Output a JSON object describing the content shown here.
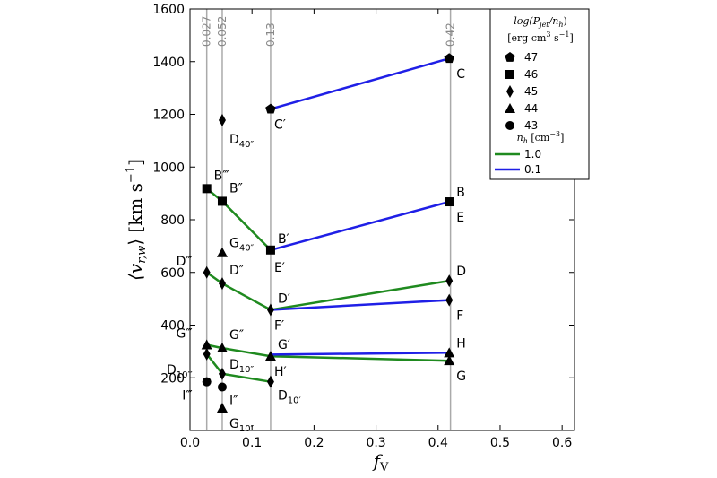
{
  "chart_data": {
    "type": "scatter",
    "xlabel": "f",
    "xlabel_sub": "V",
    "ylabel": "⟨v",
    "ylabel_sub": "r,w",
    "ylabel_unit": "⟩  [km s",
    "ylabel_sup": "−1",
    "ylabel_close": "]",
    "xlim": [
      0.0,
      0.62
    ],
    "ylim": [
      0,
      1600
    ],
    "x_ticks": [
      {
        "v": 0.0,
        "label": "0.0"
      },
      {
        "v": 0.1,
        "label": "0.1"
      },
      {
        "v": 0.2,
        "label": "0.2"
      },
      {
        "v": 0.3,
        "label": "0.3"
      },
      {
        "v": 0.4,
        "label": "0.4"
      },
      {
        "v": 0.5,
        "label": "0.5"
      },
      {
        "v": 0.6,
        "label": "0.6"
      }
    ],
    "y_ticks": [
      {
        "v": 200,
        "label": "200"
      },
      {
        "v": 400,
        "label": "400"
      },
      {
        "v": 600,
        "label": "600"
      },
      {
        "v": 800,
        "label": "800"
      },
      {
        "v": 1000,
        "label": "1000"
      },
      {
        "v": 1200,
        "label": "1200"
      },
      {
        "v": 1400,
        "label": "1400"
      },
      {
        "v": 1600,
        "label": "1600"
      }
    ],
    "vlines": [
      {
        "x": 0.027,
        "label": "0.027"
      },
      {
        "x": 0.052,
        "label": "0.052"
      },
      {
        "x": 0.13,
        "label": "0.13"
      },
      {
        "x": 0.42,
        "label": "0.42"
      }
    ],
    "lines": [
      {
        "color": "#1f1fe6",
        "points": [
          [
            0.13,
            1220
          ],
          [
            0.418,
            1412
          ]
        ]
      },
      {
        "color": "#1f8a1f",
        "points": [
          [
            0.027,
            918
          ],
          [
            0.052,
            870
          ],
          [
            0.13,
            685
          ]
        ]
      },
      {
        "color": "#1f1fe6",
        "points": [
          [
            0.13,
            685
          ],
          [
            0.418,
            868
          ]
        ]
      },
      {
        "color": "#1f8a1f",
        "points": [
          [
            0.027,
            600
          ],
          [
            0.052,
            558
          ],
          [
            0.13,
            458
          ],
          [
            0.418,
            568
          ]
        ]
      },
      {
        "color": "#1f1fe6",
        "points": [
          [
            0.13,
            458
          ],
          [
            0.418,
            495
          ]
        ]
      },
      {
        "color": "#1f8a1f",
        "points": [
          [
            0.027,
            325
          ],
          [
            0.052,
            313
          ],
          [
            0.13,
            282
          ],
          [
            0.418,
            265
          ]
        ]
      },
      {
        "color": "#1f1fe6",
        "points": [
          [
            0.13,
            288
          ],
          [
            0.418,
            295
          ]
        ]
      },
      {
        "color": "#1f8a1f",
        "points": [
          [
            0.027,
            290
          ],
          [
            0.052,
            215
          ],
          [
            0.13,
            185
          ]
        ]
      }
    ],
    "points": [
      {
        "x": 0.13,
        "y": 1220,
        "marker": "pentagon",
        "label": "C′",
        "dx": 4,
        "dy": 22
      },
      {
        "x": 0.418,
        "y": 1412,
        "marker": "pentagon",
        "label": "C",
        "dx": 8,
        "dy": 22
      },
      {
        "x": 0.052,
        "y": 1178,
        "marker": "diamond",
        "label": "D",
        "sub": "40″",
        "dx": 8,
        "dy": 26
      },
      {
        "x": 0.027,
        "y": 918,
        "marker": "square",
        "label": "B‴",
        "dx": 8,
        "dy": -10
      },
      {
        "x": 0.052,
        "y": 870,
        "marker": "square",
        "label": "B″",
        "dx": 8,
        "dy": -10
      },
      {
        "x": 0.13,
        "y": 685,
        "marker": "square",
        "label": "B′",
        "dx": 8,
        "dy": -8
      },
      {
        "x": 0.13,
        "y": 685,
        "marker": "none",
        "label": "E′",
        "dx": 4,
        "dy": 24
      },
      {
        "x": 0.418,
        "y": 868,
        "marker": "square",
        "label": "B",
        "dx": 8,
        "dy": -6
      },
      {
        "x": 0.418,
        "y": 868,
        "marker": "none",
        "label": "E",
        "dx": 8,
        "dy": 22
      },
      {
        "x": 0.052,
        "y": 675,
        "marker": "triangle",
        "label": "G",
        "sub": "40″",
        "dx": 8,
        "dy": -6
      },
      {
        "x": 0.027,
        "y": 600,
        "marker": "diamond",
        "label": "D‴",
        "dx": -14,
        "dy": -8
      },
      {
        "x": 0.052,
        "y": 558,
        "marker": "diamond",
        "label": "D″",
        "dx": 8,
        "dy": -10
      },
      {
        "x": 0.13,
        "y": 458,
        "marker": "diamond",
        "label": "D′",
        "dx": 8,
        "dy": -8
      },
      {
        "x": 0.13,
        "y": 458,
        "marker": "none",
        "label": "F′",
        "dx": 4,
        "dy": 22
      },
      {
        "x": 0.418,
        "y": 568,
        "marker": "diamond",
        "label": "D",
        "dx": 8,
        "dy": -6
      },
      {
        "x": 0.418,
        "y": 495,
        "marker": "diamond",
        "label": "F",
        "dx": 8,
        "dy": 22
      },
      {
        "x": 0.027,
        "y": 325,
        "marker": "triangle",
        "label": "G‴",
        "dx": -14,
        "dy": -8
      },
      {
        "x": 0.052,
        "y": 313,
        "marker": "triangle",
        "label": "G″",
        "dx": 8,
        "dy": -10
      },
      {
        "x": 0.13,
        "y": 282,
        "marker": "triangle",
        "label": "G′",
        "dx": 8,
        "dy": -8
      },
      {
        "x": 0.13,
        "y": 282,
        "marker": "none",
        "label": "H′",
        "dx": 4,
        "dy": 22
      },
      {
        "x": 0.418,
        "y": 295,
        "marker": "triangle",
        "label": "H",
        "dx": 8,
        "dy": -6
      },
      {
        "x": 0.418,
        "y": 265,
        "marker": "triangle",
        "label": "G",
        "dx": 8,
        "dy": 22
      },
      {
        "x": 0.027,
        "y": 290,
        "marker": "diamond",
        "label": "D",
        "sub": "10‴",
        "dx": -14,
        "dy": 22
      },
      {
        "x": 0.052,
        "y": 215,
        "marker": "diamond",
        "label": "D",
        "sub": "10″",
        "dx": 8,
        "dy": -6
      },
      {
        "x": 0.13,
        "y": 185,
        "marker": "diamond",
        "label": "D",
        "sub": "10′",
        "dx": 8,
        "dy": 20
      },
      {
        "x": 0.027,
        "y": 185,
        "marker": "circle",
        "label": "I‴",
        "dx": -14,
        "dy": 20
      },
      {
        "x": 0.052,
        "y": 165,
        "marker": "circle",
        "label": "I″",
        "dx": 8,
        "dy": 20
      },
      {
        "x": 0.052,
        "y": 85,
        "marker": "triangle",
        "label": "G",
        "sub": "10″",
        "dx": 8,
        "dy": 22
      }
    ],
    "legend": {
      "placement": "top-right",
      "title1": "log(P",
      "title1_sub": "jet",
      "title1_rest": "/n",
      "title1_sub2": "h",
      "title1_close": ")",
      "title2": "[erg cm",
      "title2_sup": "3",
      "title2_mid": " s",
      "title2_sup2": "−1",
      "title2_close": "]",
      "marker_entries": [
        {
          "marker": "pentagon",
          "label": "47"
        },
        {
          "marker": "square",
          "label": "46"
        },
        {
          "marker": "diamond",
          "label": "45"
        },
        {
          "marker": "triangle",
          "label": "44"
        },
        {
          "marker": "circle",
          "label": "43"
        }
      ],
      "density_title": "n",
      "density_title_sub": "h",
      "density_title_rest": " [cm",
      "density_title_sup": "−3",
      "density_title_close": "]",
      "line_entries": [
        {
          "color": "#1f8a1f",
          "label": "1.0"
        },
        {
          "color": "#1f1fe6",
          "label": "0.1"
        }
      ]
    }
  }
}
